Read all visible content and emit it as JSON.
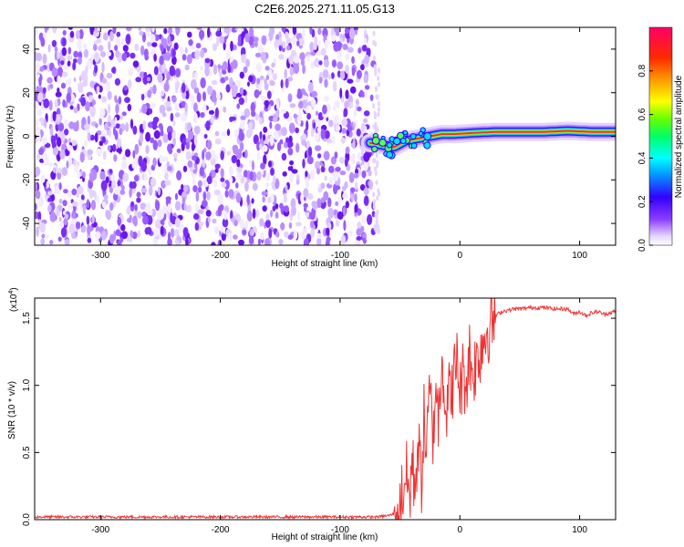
{
  "figure_title": "C2E6.2025.271.11.05.G13",
  "chart_data": [
    {
      "type": "heatmap",
      "title": "C2E6.2025.271.11.05.G13",
      "xlabel": "Height of straight line (km)",
      "ylabel": "Frequency (Hz)",
      "xlim": [
        -355,
        130
      ],
      "ylim": [
        -50,
        50
      ],
      "xticks": [
        -300,
        -200,
        -100,
        0,
        100
      ],
      "xtick_labels": [
        "-300",
        "-200",
        "-100",
        "0",
        "100"
      ],
      "yticks": [
        -40,
        -20,
        0,
        20,
        40
      ],
      "ytick_labels": [
        "-40",
        "-20",
        "0",
        "20",
        "40"
      ],
      "noise_region_x": [
        -355,
        -72
      ],
      "signal_line": [
        {
          "x": -75,
          "y": -3
        },
        {
          "x": -65,
          "y": -4
        },
        {
          "x": -55,
          "y": -5
        },
        {
          "x": -45,
          "y": -2
        },
        {
          "x": -35,
          "y": -1
        },
        {
          "x": -25,
          "y": 0
        },
        {
          "x": -15,
          "y": 1
        },
        {
          "x": -5,
          "y": 1
        },
        {
          "x": 10,
          "y": 1.5
        },
        {
          "x": 30,
          "y": 2
        },
        {
          "x": 50,
          "y": 2
        },
        {
          "x": 70,
          "y": 2
        },
        {
          "x": 90,
          "y": 2.5
        },
        {
          "x": 110,
          "y": 2
        },
        {
          "x": 130,
          "y": 2
        }
      ],
      "colorbar": {
        "label": "Normalized spectral amplitude",
        "range": [
          0,
          1
        ],
        "ticks": [
          0.0,
          0.2,
          0.4,
          0.6,
          0.8
        ],
        "tick_labels": [
          "0.0",
          "0.2",
          "0.4",
          "0.6",
          "0.8"
        ]
      }
    },
    {
      "type": "line",
      "xlabel": "Height of straight line (km)",
      "ylabel": "SNR (10 * v/v)",
      "multiplier_label": "(x10",
      "multiplier_exp": "4",
      "multiplier_close": ")",
      "xlim": [
        -355,
        130
      ],
      "ylim": [
        0,
        1.65
      ],
      "xticks": [
        -300,
        -200,
        -100,
        0,
        100
      ],
      "xtick_labels": [
        "-300",
        "-200",
        "-100",
        "0",
        "100"
      ],
      "yticks": [
        0.0,
        0.5,
        1.0,
        1.5
      ],
      "ytick_labels": [
        "0.0",
        "0.5",
        "1.0",
        "1.5"
      ],
      "series": [
        {
          "name": "SNR",
          "color": "#ee3333",
          "x": [
            -355,
            -300,
            -250,
            -200,
            -150,
            -100,
            -70,
            -60,
            -52,
            -48,
            -45,
            -42,
            -40,
            -38,
            -35,
            -32,
            -30,
            -28,
            -25,
            -22,
            -20,
            -18,
            -15,
            -12,
            -10,
            -8,
            -5,
            -2,
            0,
            3,
            5,
            8,
            10,
            13,
            15,
            18,
            20,
            22,
            25,
            28,
            30,
            35,
            40,
            45,
            50,
            60,
            70,
            80,
            90,
            95,
            100,
            105,
            110,
            115,
            120,
            125,
            130
          ],
          "values": [
            0.02,
            0.02,
            0.02,
            0.02,
            0.02,
            0.02,
            0.02,
            0.03,
            0.05,
            0.2,
            0.35,
            0.15,
            0.45,
            0.25,
            0.55,
            0.3,
            0.75,
            0.5,
            0.95,
            0.6,
            1.1,
            0.7,
            1.3,
            0.8,
            0.9,
            0.95,
            1.05,
            1.2,
            0.95,
            1.1,
            1.0,
            1.25,
            1.1,
            1.15,
            1.2,
            1.3,
            1.35,
            1.4,
            1.45,
            1.5,
            1.52,
            1.55,
            1.56,
            1.57,
            1.57,
            1.58,
            1.58,
            1.57,
            1.57,
            1.53,
            1.55,
            1.52,
            1.54,
            1.55,
            1.53,
            1.54,
            1.55
          ]
        }
      ]
    }
  ]
}
